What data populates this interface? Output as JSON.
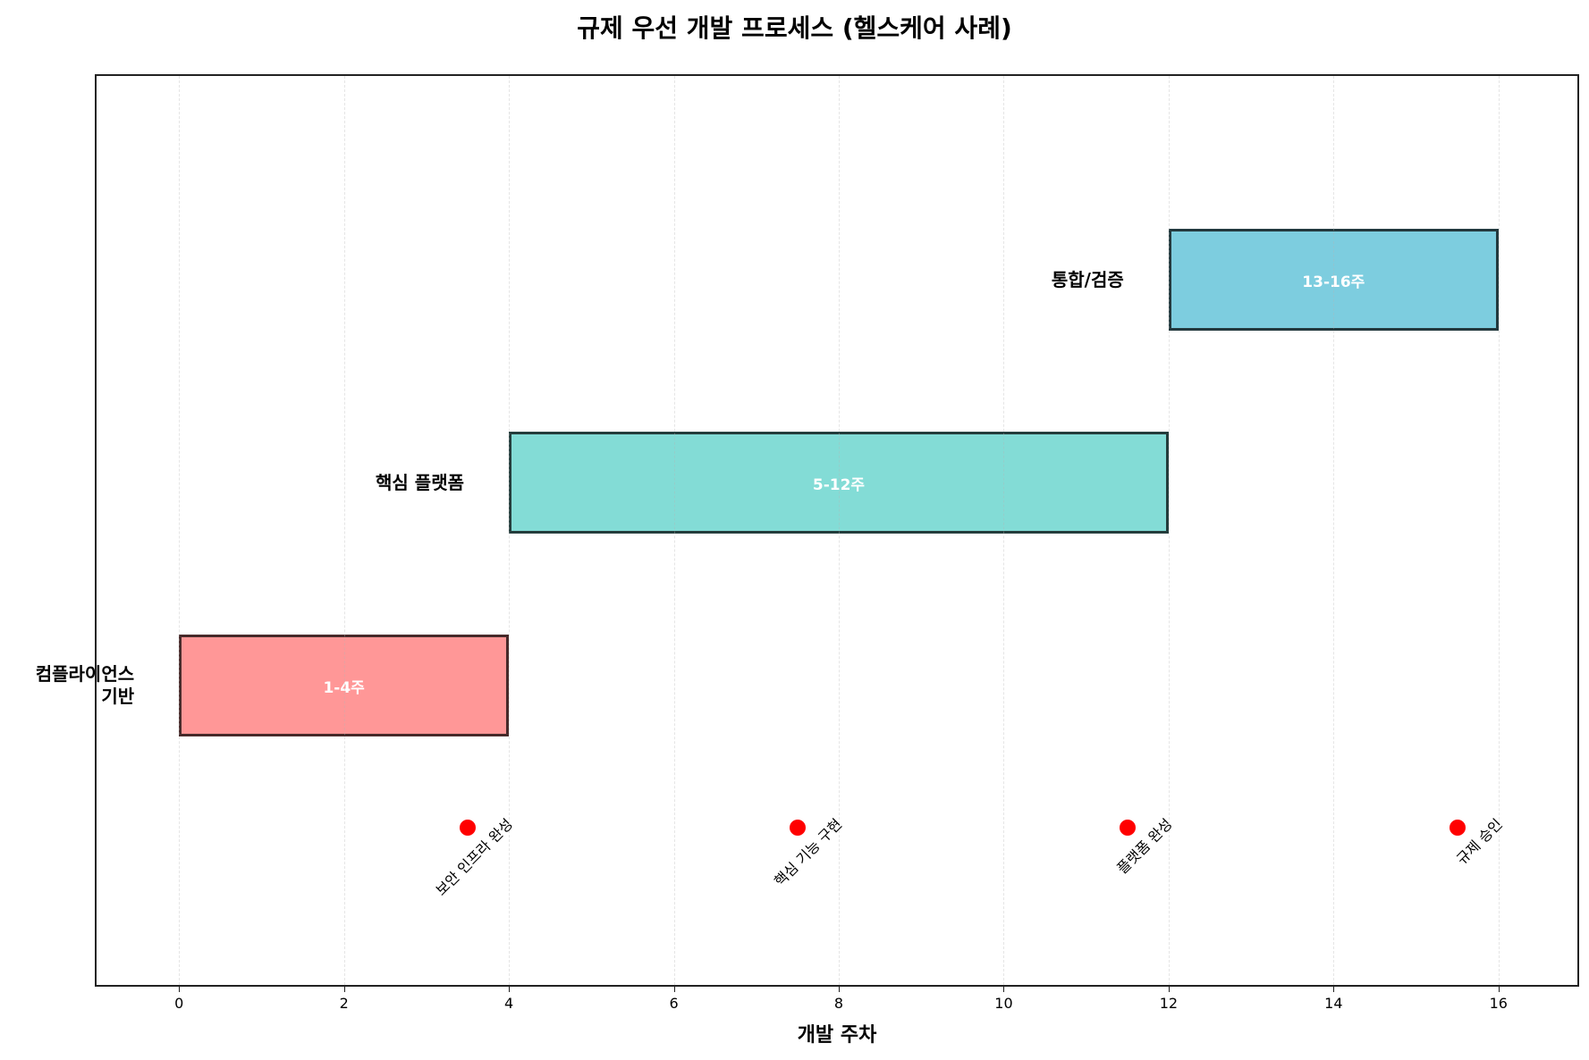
{
  "chart_data": {
    "type": "gantt",
    "title": "규제 우선 개발 프로세스 (헬스케어 사례)",
    "xlabel": "개발 주차",
    "ylabel": "",
    "xlim": [
      -1,
      17
    ],
    "xticks": [
      0,
      2,
      4,
      6,
      8,
      10,
      12,
      14,
      16
    ],
    "grid": {
      "x": true,
      "y": false,
      "style": "dashed"
    },
    "phases": [
      {
        "name": "컴플라이언스\n기반",
        "start": 0,
        "end": 4,
        "label": "1-4주",
        "color": "#FF6B6B"
      },
      {
        "name": "핵심 플랫폼",
        "start": 4,
        "end": 12,
        "label": "5-12주",
        "color": "#4ECDC4"
      },
      {
        "name": "통합/검증",
        "start": 12,
        "end": 16,
        "label": "13-16주",
        "color": "#45B7D1"
      }
    ],
    "milestones": [
      {
        "x": 3.5,
        "label": "보안 인프라 완성"
      },
      {
        "x": 7.5,
        "label": "핵심 기능 구현"
      },
      {
        "x": 11.5,
        "label": "플랫폼 완성"
      },
      {
        "x": 15.5,
        "label": "규제 승인"
      }
    ],
    "milestone_color": "#FF0000"
  }
}
